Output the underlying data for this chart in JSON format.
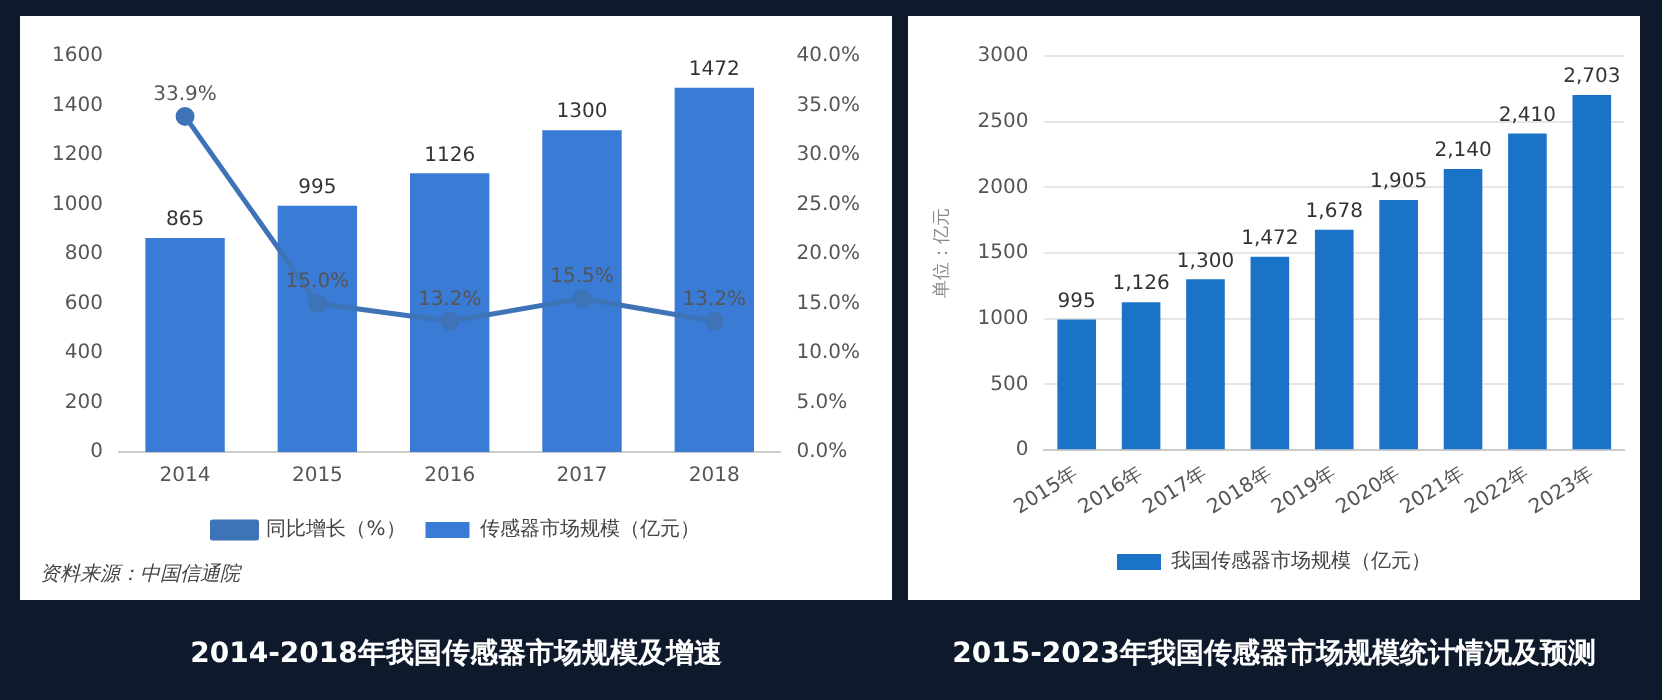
{
  "chart_data": [
    {
      "type": "bar",
      "title": "2014-2018年我国传感器市场规模及增速",
      "categories": [
        "2014",
        "2015",
        "2016",
        "2017",
        "2018"
      ],
      "series": [
        {
          "name": "传感器市场规模（亿元）",
          "color": "#3a7bd5",
          "values": [
            865,
            995,
            1126,
            1300,
            1472
          ],
          "value_labels": [
            "865",
            "995",
            "1126",
            "1300",
            "1472"
          ]
        },
        {
          "name": "同比增长（%）",
          "type": "line",
          "axis": "y2",
          "color": "#3f73b8",
          "values": [
            33.9,
            15.0,
            13.2,
            15.5,
            13.2
          ],
          "value_labels": [
            "33.9%",
            "15.0%",
            "13.2%",
            "15.5%",
            "13.2%"
          ]
        }
      ],
      "ylim": [
        0,
        1600
      ],
      "yticks": [
        0,
        200,
        400,
        600,
        800,
        1000,
        1200,
        1400,
        1600
      ],
      "y2lim": [
        0,
        40
      ],
      "y2ticks": [
        {
          "value": 0,
          "label": "0.0%"
        },
        {
          "value": 5,
          "label": "5.0%"
        },
        {
          "value": 10,
          "label": "10.0%"
        },
        {
          "value": 15,
          "label": "15.0%"
        },
        {
          "value": 20,
          "label": "20.0%"
        },
        {
          "value": 25,
          "label": "25.0%"
        },
        {
          "value": 30,
          "label": "30.0%"
        },
        {
          "value": 35,
          "label": "35.0%"
        },
        {
          "value": 40,
          "label": "40.0%"
        }
      ],
      "grid": false,
      "legend": "bottom",
      "marker": "circle",
      "annotations": [
        "资料来源：中国信通院"
      ]
    },
    {
      "type": "bar",
      "title": "2015-2023年我国传感器市场规模统计情况及预测",
      "ylabel": "单位：亿元",
      "categories": [
        "2015年",
        "2016年",
        "2017年",
        "2018年",
        "2019年",
        "2020年",
        "2021年",
        "2022年",
        "2023年"
      ],
      "series": [
        {
          "name": "我国传感器市场规模（亿元）",
          "color": "#1a73c6",
          "values": [
            995,
            1126,
            1300,
            1472,
            1678,
            1905,
            2140,
            2410,
            2703
          ],
          "value_labels": [
            "995",
            "1,126",
            "1,300",
            "1,472",
            "1,678",
            "1,905",
            "2,140",
            "2,410",
            "2,703"
          ]
        }
      ],
      "ylim": [
        0,
        3000
      ],
      "yticks": [
        0,
        500,
        1000,
        1500,
        2000,
        2500,
        3000
      ],
      "grid": "y",
      "legend": "bottom"
    }
  ]
}
